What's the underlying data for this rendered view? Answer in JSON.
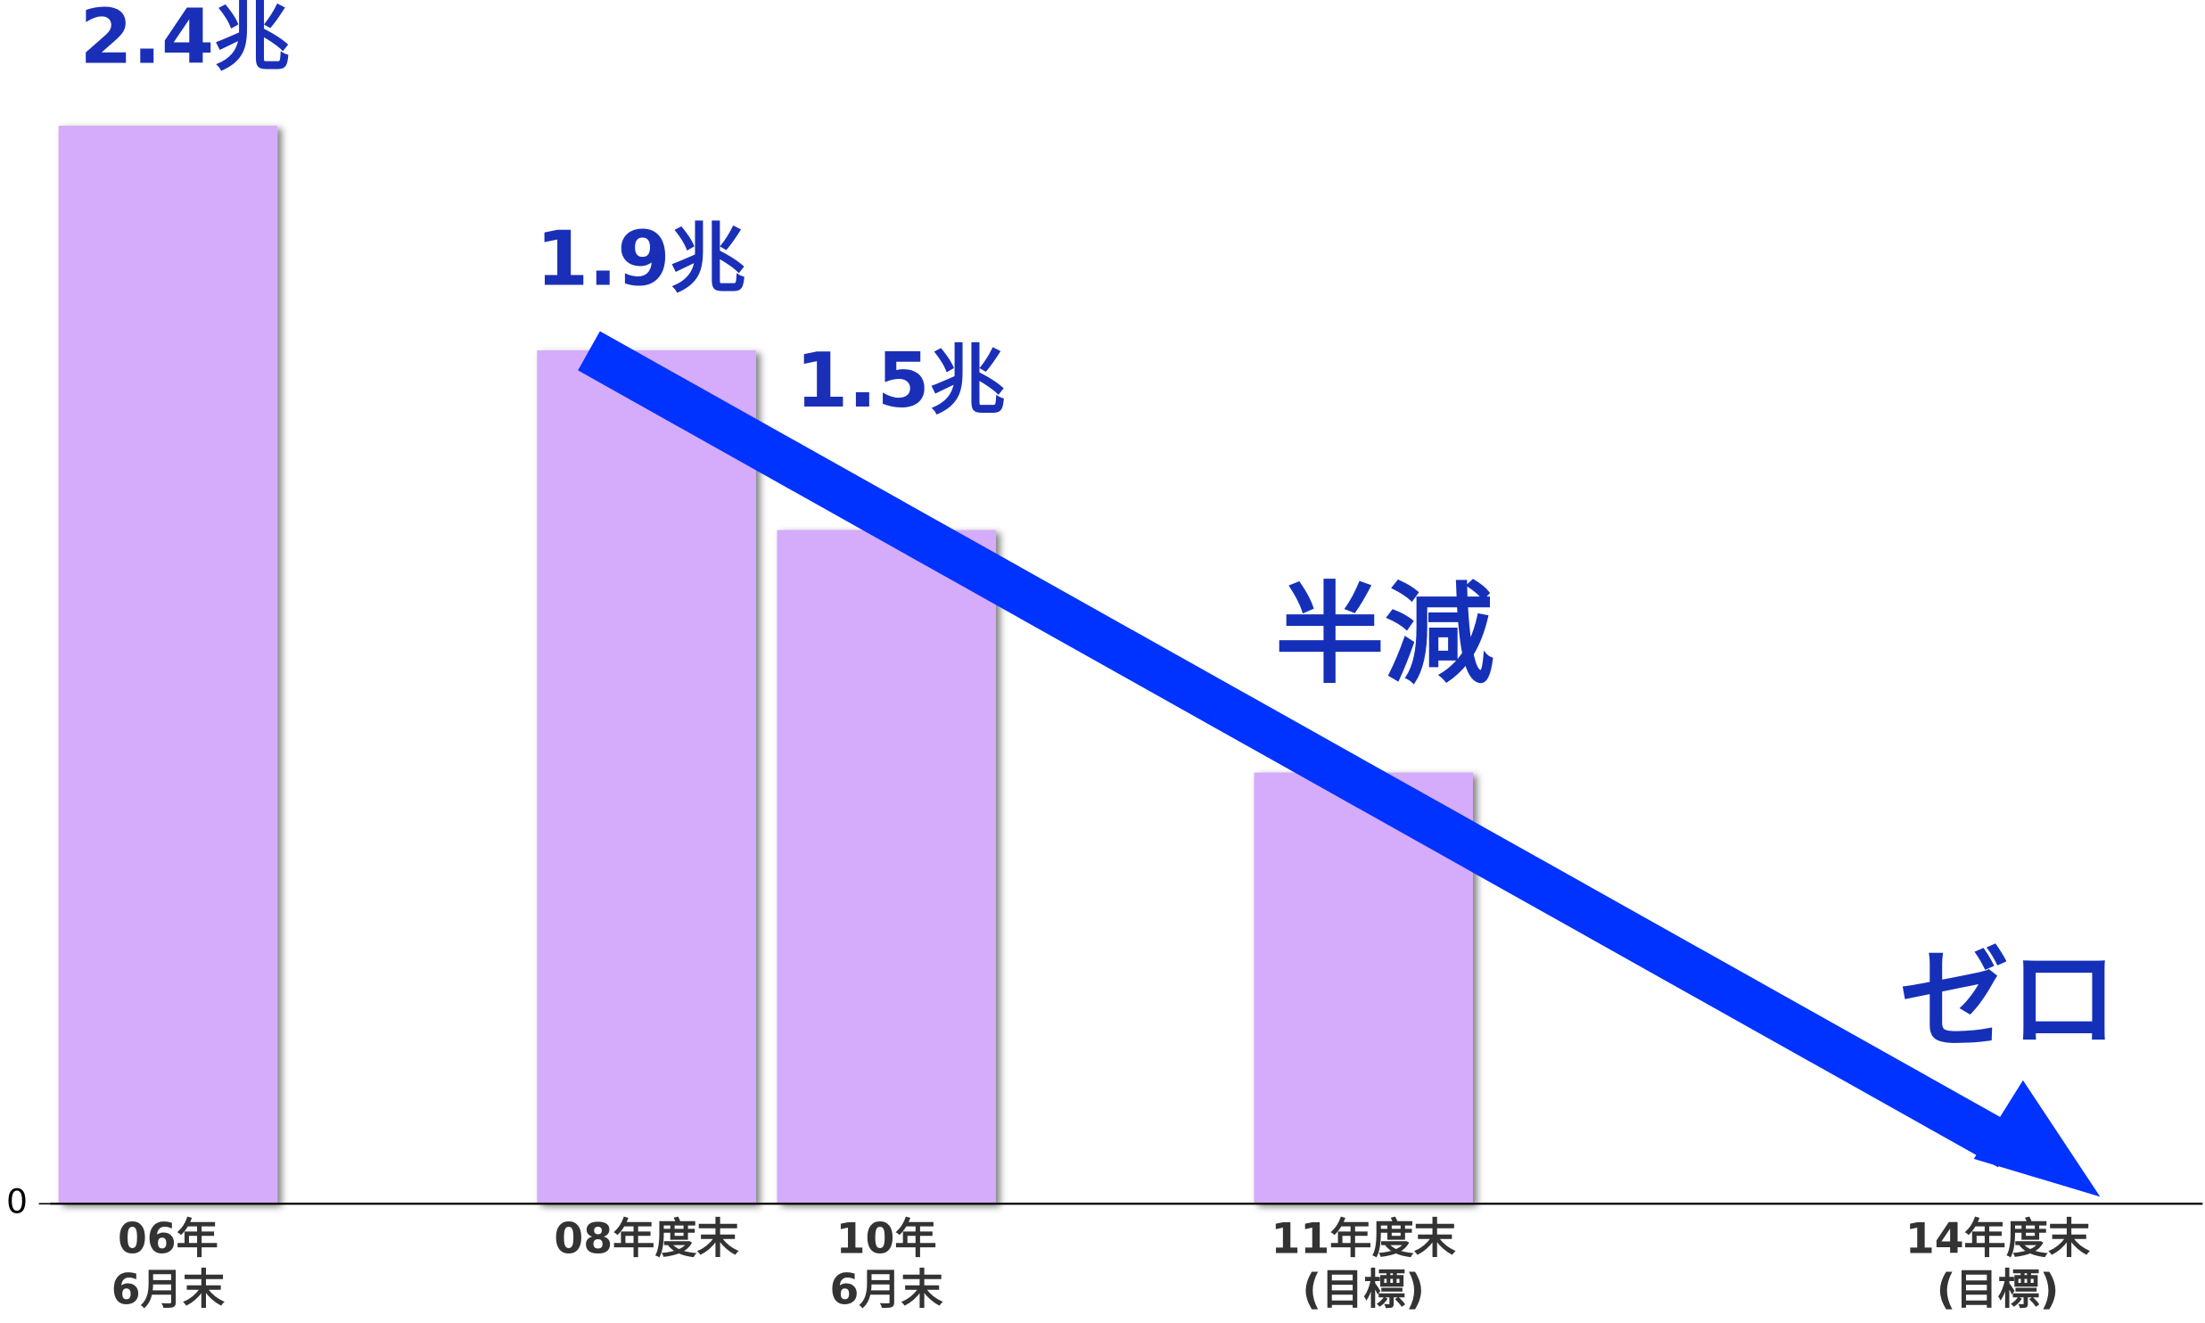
{
  "chart_data": {
    "type": "bar",
    "categories": [
      "06年\n6月末",
      "08年度末",
      "10年\n6月末",
      "11年度末\n(目標)",
      "14年度末\n(目標)"
    ],
    "values": [
      2.4,
      1.9,
      1.5,
      0.96,
      0
    ],
    "value_labels": [
      "2.4兆",
      "1.9兆",
      "1.5兆",
      null,
      null
    ],
    "annotations": [
      "半減",
      "ゼロ"
    ],
    "color": "#d4acfb",
    "ylim": [
      0,
      2.68
    ],
    "yticks": [
      0
    ]
  }
}
